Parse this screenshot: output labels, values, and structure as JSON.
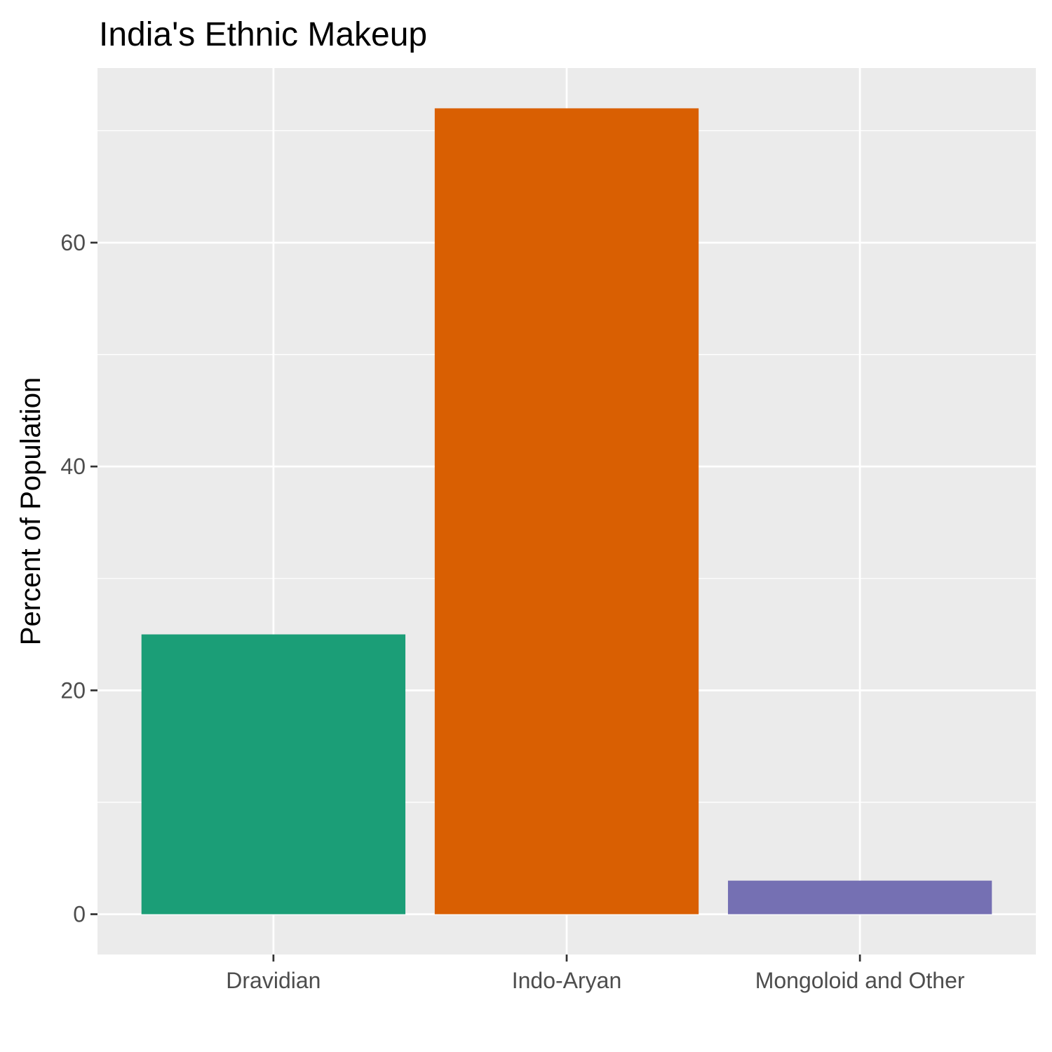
{
  "chart_data": {
    "type": "bar",
    "title": "India's Ethnic Makeup",
    "xlabel": "",
    "ylabel": "Percent of Population",
    "categories": [
      "Dravidian",
      "Indo-Aryan",
      "Mongoloid and Other"
    ],
    "values": [
      25,
      72,
      3
    ],
    "colors": [
      "#1b9e77",
      "#d95f02",
      "#7570b3"
    ],
    "ylim": [
      -3.6,
      75.6
    ],
    "y_ticks": [
      0,
      20,
      40,
      60
    ],
    "y_tick_labels": [
      "0",
      "20",
      "40",
      "60"
    ],
    "grid": true,
    "legend": "none",
    "panel_background": "#ebebeb",
    "grid_color": "#ffffff"
  }
}
